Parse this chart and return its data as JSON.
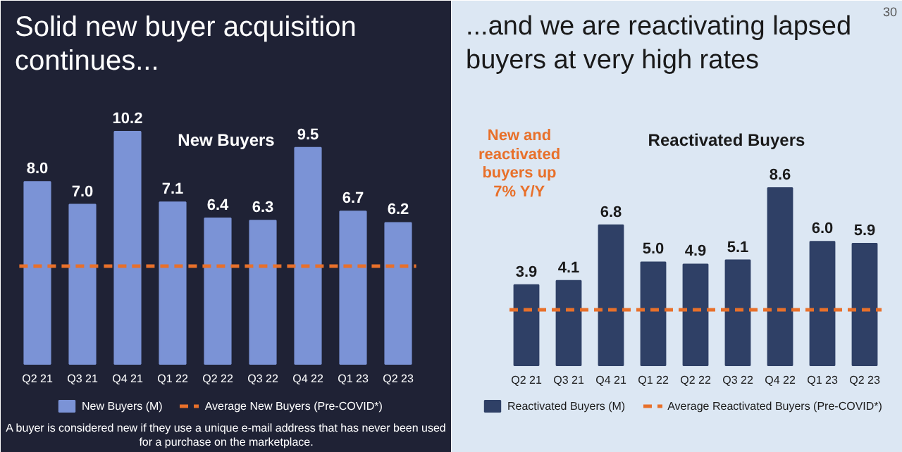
{
  "chart_data": [
    {
      "type": "bar",
      "title": "Solid new buyer acquisition continues...",
      "subtitle": "New Buyers",
      "categories": [
        "Q2 21",
        "Q3 21",
        "Q4 21",
        "Q1 22",
        "Q2 22",
        "Q3 22",
        "Q4 22",
        "Q1 23",
        "Q2 23"
      ],
      "series": [
        {
          "name": "New Buyers (M)",
          "color": "#7b93d6",
          "values": [
            8.0,
            7.0,
            10.2,
            7.1,
            6.4,
            6.3,
            9.5,
            6.7,
            6.2
          ],
          "value_labels": [
            "8.0",
            "7.0",
            "10.2",
            "7.1",
            "6.4",
            "6.3",
            "9.5",
            "6.7",
            "6.2"
          ]
        }
      ],
      "ref_lines": [
        {
          "axis": "y",
          "value": 4.3,
          "label": "Average New Buyers (Pre-COVID*)",
          "color": "#e8702a",
          "line_style": "dashed"
        }
      ],
      "legend": "bottom",
      "grid": false,
      "annotations": [
        "A buyer is considered new if they use a unique e-mail address that has never been used for a purchase on the marketplace."
      ]
    },
    {
      "type": "bar",
      "title": "...and we are reactivating lapsed buyers at very high rates",
      "subtitle": "Reactivated Buyers",
      "categories": [
        "Q2 21",
        "Q3 21",
        "Q4 21",
        "Q1 22",
        "Q2 22",
        "Q3 22",
        "Q4 22",
        "Q1 23",
        "Q2 23"
      ],
      "series": [
        {
          "name": "Reactivated Buyers (M)",
          "color": "#2f4066",
          "values": [
            3.9,
            4.1,
            6.8,
            5.0,
            4.9,
            5.1,
            8.6,
            6.0,
            5.9
          ],
          "value_labels": [
            "3.9",
            "4.1",
            "6.8",
            "5.0",
            "4.9",
            "5.1",
            "8.6",
            "6.0",
            "5.9"
          ]
        }
      ],
      "ref_lines": [
        {
          "axis": "y",
          "value": 2.7,
          "label": "Average Reactivated Buyers (Pre-COVID*)",
          "color": "#e8702a",
          "line_style": "dashed"
        }
      ],
      "legend": "bottom",
      "grid": false,
      "annotations": [
        "New and reactivated buyers up 7% Y/Y",
        "30"
      ]
    }
  ]
}
